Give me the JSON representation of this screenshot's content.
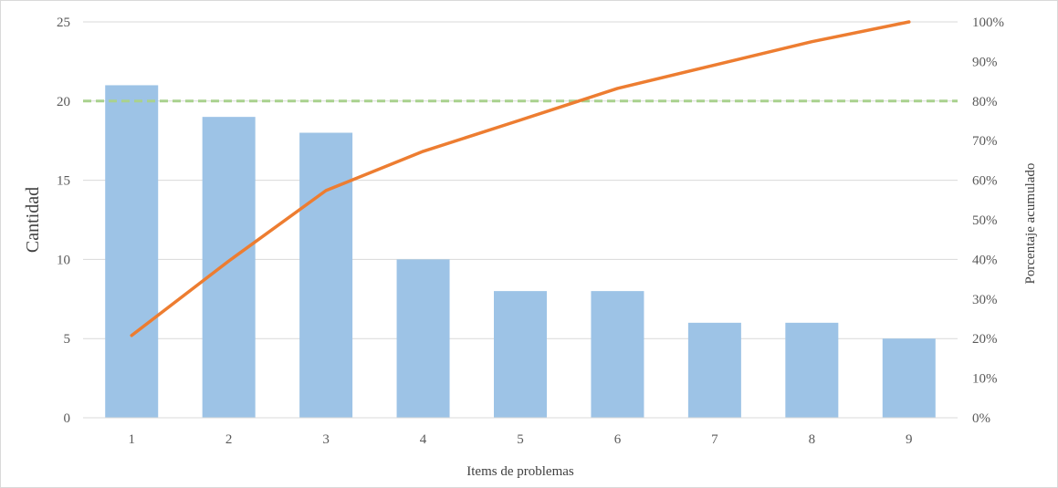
{
  "chart_data": {
    "type": "bar",
    "title": "",
    "xlabel": "Items de problemas",
    "ylabel": "Cantidad",
    "y2label": "Porcentaje acumulado",
    "categories": [
      "1",
      "2",
      "3",
      "4",
      "5",
      "6",
      "7",
      "8",
      "9"
    ],
    "ylim": [
      0,
      25
    ],
    "yticks": [
      0,
      5,
      10,
      15,
      20,
      25
    ],
    "y2lim": [
      0,
      100
    ],
    "y2ticks": [
      "0%",
      "10%",
      "20%",
      "30%",
      "40%",
      "50%",
      "60%",
      "70%",
      "80%",
      "90%",
      "100%"
    ],
    "grid": true,
    "series": [
      {
        "type": "bar",
        "axis": "left",
        "values": [
          21,
          19,
          18,
          10,
          8,
          8,
          6,
          6,
          5
        ],
        "color": "#9dc3e6"
      },
      {
        "type": "line",
        "axis": "right",
        "values": [
          20.8,
          39.6,
          57.4,
          67.3,
          75.2,
          83.2,
          89.1,
          95.0,
          100.0
        ],
        "color": "#ed7d31"
      }
    ],
    "reference_line": {
      "axis": "right",
      "value": 80,
      "style": "dashed",
      "color": "#a9d18e"
    }
  }
}
